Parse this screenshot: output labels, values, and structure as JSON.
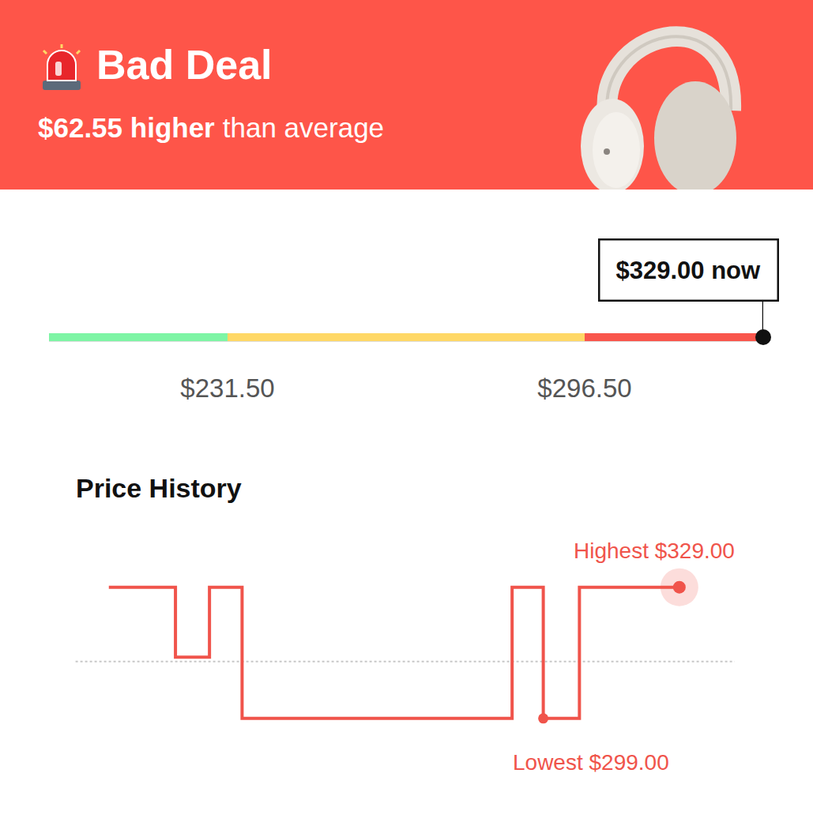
{
  "header": {
    "badge": "Bad Deal",
    "difference": "$62.55 higher",
    "comparison": "than average"
  },
  "chart_data": [
    {
      "type": "range_bar",
      "xlim": [
        199,
        329
      ],
      "xticks": [
        {
          "value": 231.5,
          "label": "$231.50"
        },
        {
          "value": 296.5,
          "label": "$296.50"
        }
      ],
      "segments": [
        {
          "from": 199,
          "to": 231.5,
          "color": "#7ef5a5"
        },
        {
          "from": 231.5,
          "to": 296.5,
          "color": "#ffd866"
        },
        {
          "from": 296.5,
          "to": 329,
          "color": "#f9564c"
        }
      ],
      "current": {
        "value": 329,
        "label": "$329.00 now"
      },
      "grid": false
    },
    {
      "type": "line",
      "title": "Price History",
      "line_style": "step",
      "color": "#f0544b",
      "x": [
        8.0,
        17.4,
        22.2,
        26.8,
        64.9,
        69.3,
        74.4,
        88.5
      ],
      "values": [
        329,
        313,
        329,
        299,
        329,
        299,
        329,
        329
      ],
      "xlim": [
        0,
        100
      ],
      "ylim": [
        280,
        360
      ],
      "xticks": [],
      "yticks": [],
      "tick_labels": false,
      "grid": false,
      "average_line": 312,
      "highlights": [
        {
          "label": "Highest $329.00",
          "x": 88.5,
          "value": 329
        },
        {
          "label": "Lowest $299.00",
          "x": 69.3,
          "value": 299
        }
      ]
    }
  ]
}
